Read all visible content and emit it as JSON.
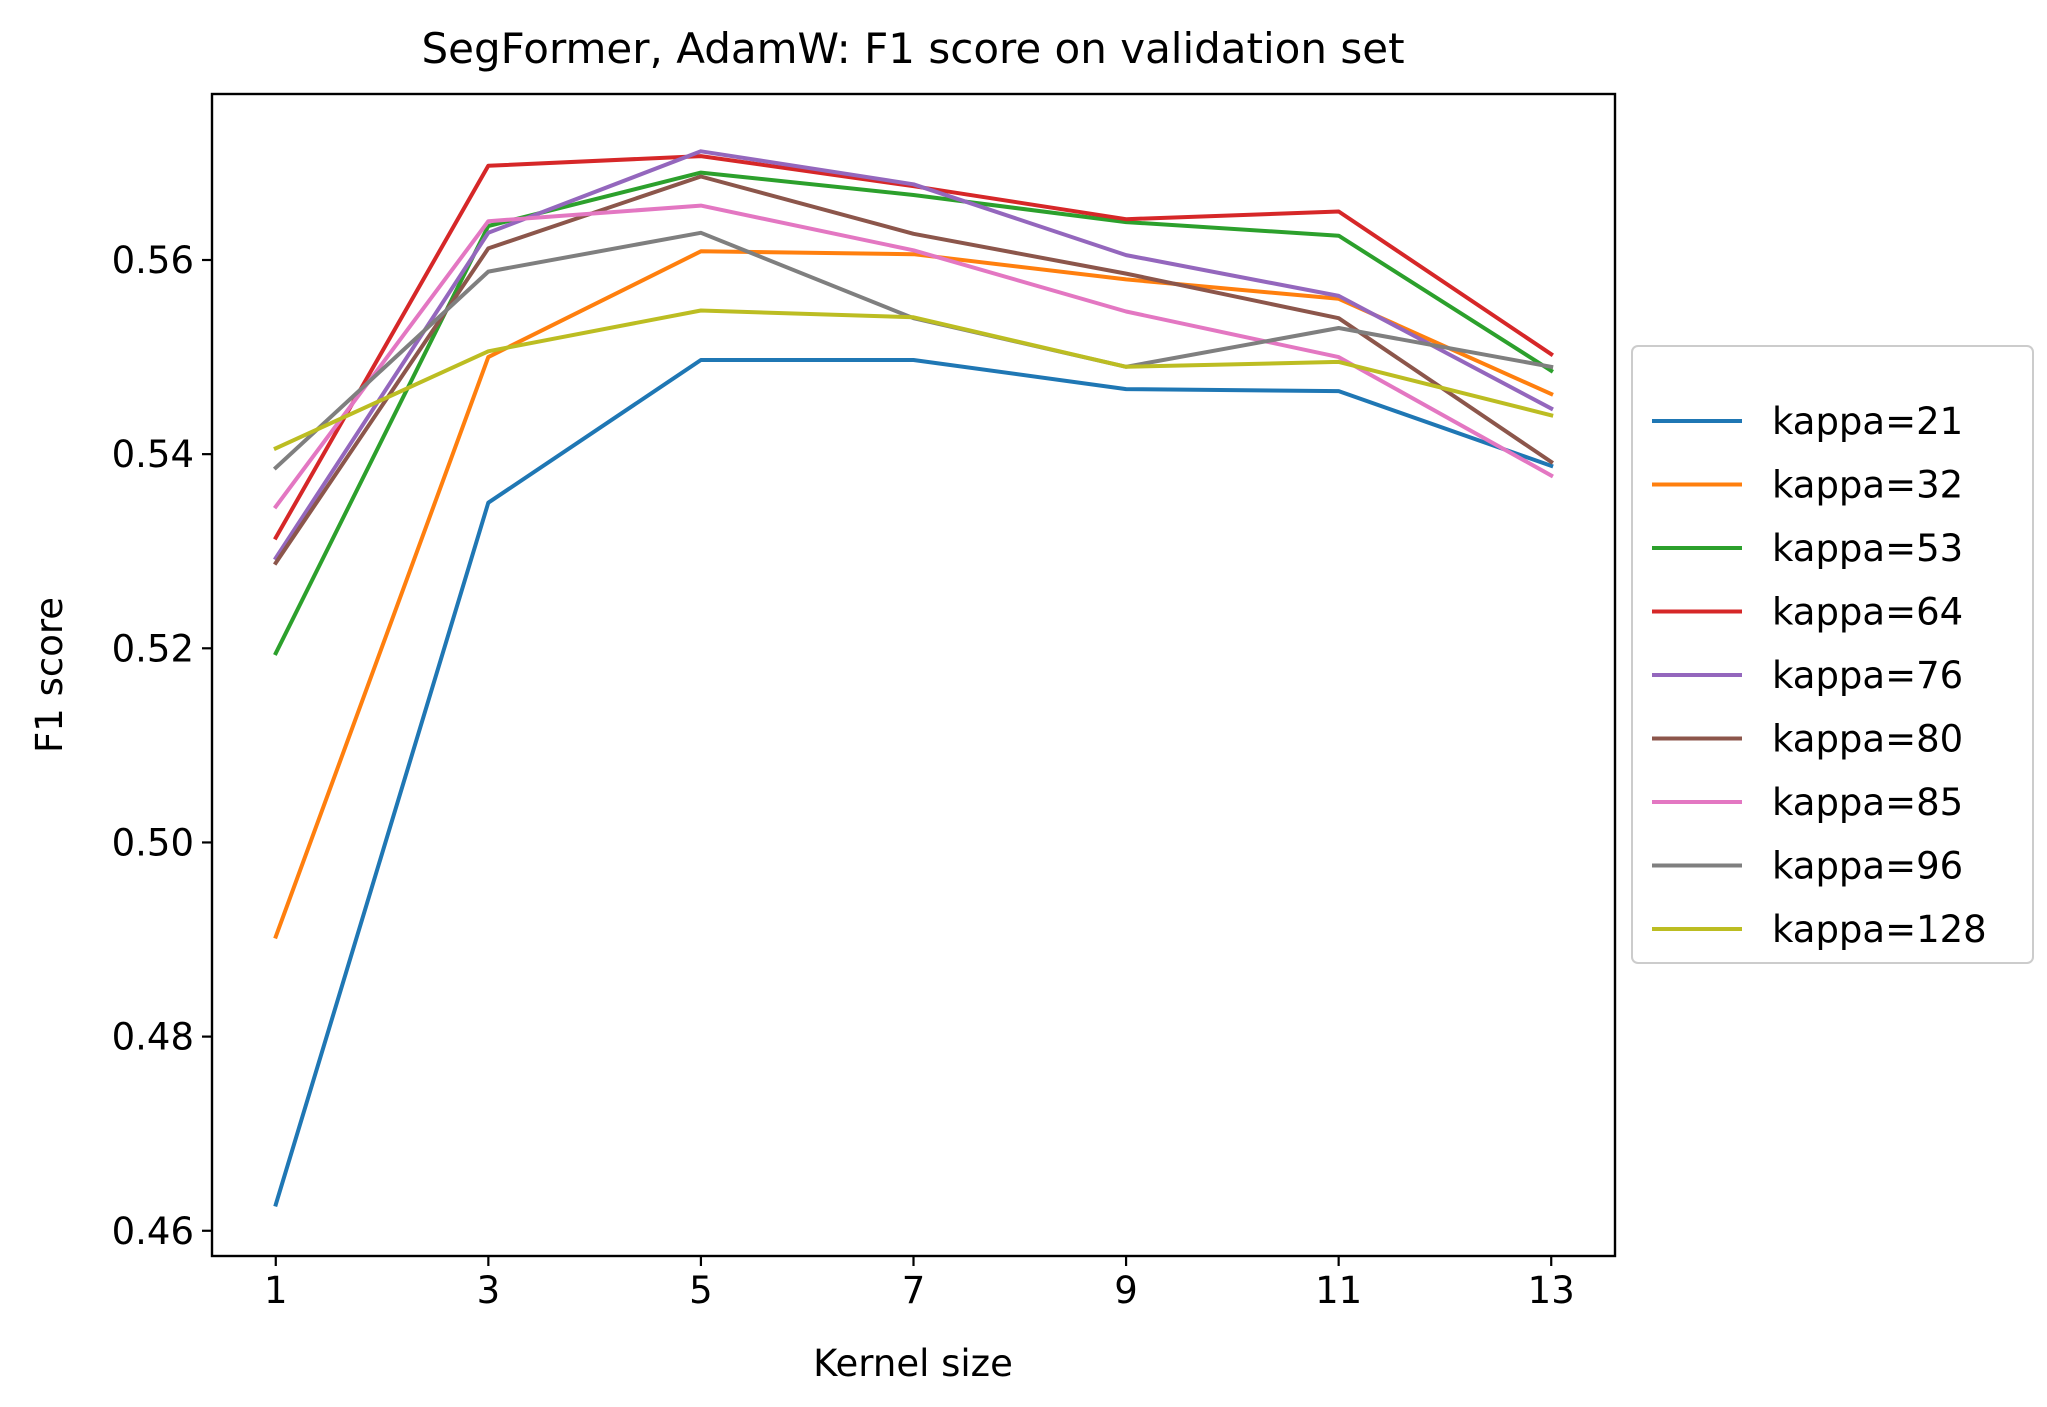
{
  "chart_data": {
    "type": "line",
    "title": "SegFormer, AdamW: F1 score on validation set",
    "xlabel": "Kernel size",
    "ylabel": "F1 score",
    "x": [
      1,
      3,
      5,
      7,
      9,
      11,
      13
    ],
    "xlim": [
      0.4,
      13.6
    ],
    "ylim": [
      0.4574,
      0.5771
    ],
    "x_ticks": [
      1,
      3,
      5,
      7,
      9,
      11,
      13
    ],
    "y_ticks": [
      0.46,
      0.48,
      0.5,
      0.52,
      0.54,
      0.56
    ],
    "y_tick_labels": [
      "0.46",
      "0.48",
      "0.50",
      "0.52",
      "0.54",
      "0.56"
    ],
    "grid": false,
    "legend_position": "outside-right",
    "series": [
      {
        "name": "kappa=21",
        "color": "#1f77b4",
        "values": [
          0.4627,
          0.535,
          0.5497,
          0.5497,
          0.5467,
          0.5465,
          0.5388
        ]
      },
      {
        "name": "kappa=32",
        "color": "#ff7f0e",
        "values": [
          0.4903,
          0.55,
          0.5609,
          0.5606,
          0.558,
          0.556,
          0.5462
        ]
      },
      {
        "name": "kappa=53",
        "color": "#2ca02c",
        "values": [
          0.5195,
          0.5635,
          0.569,
          0.5667,
          0.5639,
          0.5625,
          0.5486
        ]
      },
      {
        "name": "kappa=64",
        "color": "#d62728",
        "values": [
          0.5314,
          0.5697,
          0.5707,
          0.5676,
          0.5642,
          0.565,
          0.5503
        ]
      },
      {
        "name": "kappa=76",
        "color": "#9467bd",
        "values": [
          0.5293,
          0.5628,
          0.5712,
          0.5678,
          0.5605,
          0.5563,
          0.5447
        ]
      },
      {
        "name": "kappa=80",
        "color": "#8c564b",
        "values": [
          0.5288,
          0.5612,
          0.5686,
          0.5627,
          0.5586,
          0.554,
          0.5392
        ]
      },
      {
        "name": "kappa=85",
        "color": "#e377c2",
        "values": [
          0.5346,
          0.564,
          0.5656,
          0.561,
          0.5547,
          0.55,
          0.5378
        ]
      },
      {
        "name": "kappa=96",
        "color": "#7f7f7f",
        "values": [
          0.5386,
          0.5588,
          0.5628,
          0.554,
          0.549,
          0.553,
          0.549
        ]
      },
      {
        "name": "kappa=128",
        "color": "#bcbd22",
        "values": [
          0.5406,
          0.5506,
          0.5548,
          0.5541,
          0.549,
          0.5495,
          0.544
        ]
      }
    ]
  }
}
